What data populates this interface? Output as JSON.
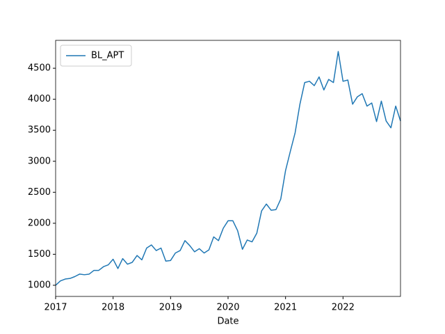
{
  "chart_data": {
    "type": "line",
    "xlabel": "Date",
    "x": [
      "2017-01",
      "2017-02",
      "2017-03",
      "2017-04",
      "2017-05",
      "2017-06",
      "2017-07",
      "2017-08",
      "2017-09",
      "2017-10",
      "2017-11",
      "2017-12",
      "2018-01",
      "2018-02",
      "2018-03",
      "2018-04",
      "2018-05",
      "2018-06",
      "2018-07",
      "2018-08",
      "2018-09",
      "2018-10",
      "2018-11",
      "2018-12",
      "2019-01",
      "2019-02",
      "2019-03",
      "2019-04",
      "2019-05",
      "2019-06",
      "2019-07",
      "2019-08",
      "2019-09",
      "2019-10",
      "2019-11",
      "2019-12",
      "2020-01",
      "2020-02",
      "2020-03",
      "2020-04",
      "2020-05",
      "2020-06",
      "2020-07",
      "2020-08",
      "2020-09",
      "2020-10",
      "2020-11",
      "2020-12",
      "2021-01",
      "2021-02",
      "2021-03",
      "2021-04",
      "2021-05",
      "2021-06",
      "2021-07",
      "2021-08",
      "2021-09",
      "2021-10",
      "2021-11",
      "2021-12",
      "2022-01",
      "2022-02",
      "2022-03",
      "2022-04",
      "2022-05",
      "2022-06",
      "2022-07",
      "2022-08",
      "2022-09",
      "2022-10",
      "2022-11",
      "2022-12",
      "2023-01"
    ],
    "series": [
      {
        "name": "BL_APT",
        "color": "#1f77b4",
        "values": [
          1000,
          1070,
          1100,
          1110,
          1140,
          1180,
          1170,
          1180,
          1240,
          1240,
          1300,
          1330,
          1420,
          1270,
          1430,
          1340,
          1370,
          1480,
          1410,
          1600,
          1650,
          1560,
          1600,
          1390,
          1400,
          1520,
          1560,
          1720,
          1640,
          1540,
          1590,
          1520,
          1570,
          1780,
          1720,
          1920,
          2040,
          2040,
          1880,
          1580,
          1730,
          1700,
          1840,
          2200,
          2310,
          2210,
          2220,
          2390,
          2850,
          3160,
          3460,
          3920,
          4270,
          4290,
          4220,
          4360,
          4150,
          4320,
          4270,
          4770,
          4290,
          4310,
          3920,
          4040,
          4090,
          3890,
          3940,
          3640,
          3970,
          3650,
          3540,
          3890,
          3650
        ]
      }
    ],
    "xlim": [
      "2017-01",
      "2023-01"
    ],
    "xticks": [
      2017,
      2018,
      2019,
      2020,
      2021,
      2022
    ],
    "ylim": [
      820,
      4950
    ],
    "yticks": [
      1000,
      1500,
      2000,
      2500,
      3000,
      3500,
      4000,
      4500
    ],
    "grid": false,
    "legend": "upper left"
  }
}
